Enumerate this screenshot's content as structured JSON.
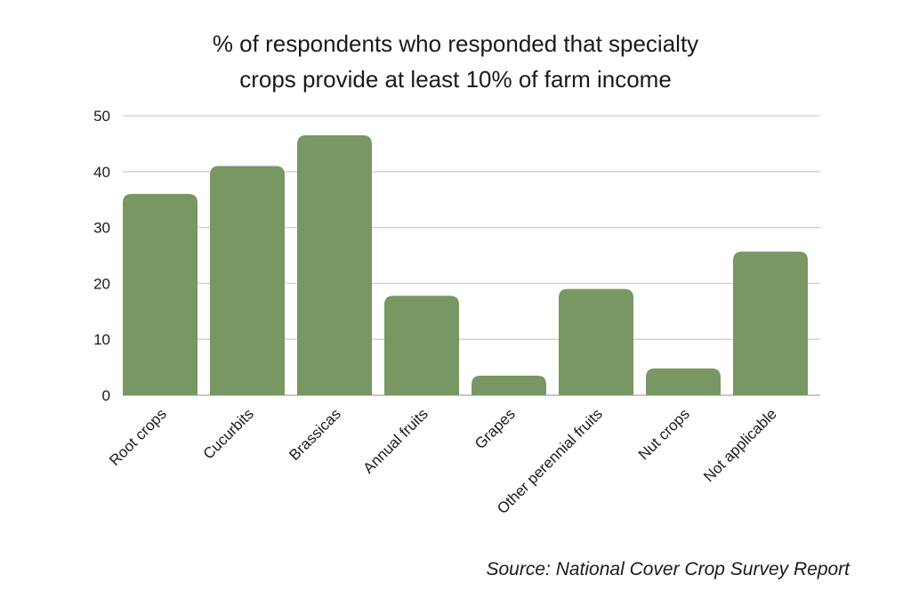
{
  "chart_data": {
    "type": "bar",
    "title_lines": [
      "% of respondents who responded that specialty",
      "crops provide at least 10% of farm income"
    ],
    "categories": [
      "Root crops",
      "Cucurbits",
      "Brassicas",
      "Annual fruits",
      "Grapes",
      "Other perennial fruits",
      "Nut crops",
      "Not applicable"
    ],
    "values": [
      36,
      41,
      46.5,
      17.8,
      3.5,
      19,
      4.8,
      25.7
    ],
    "ylim": [
      0,
      50
    ],
    "yticks": [
      "0",
      "10",
      "20",
      "30",
      "40",
      "50"
    ],
    "grid": true,
    "bar_color": "#789763",
    "source": "Source: National Cover Crop Survey Report"
  }
}
